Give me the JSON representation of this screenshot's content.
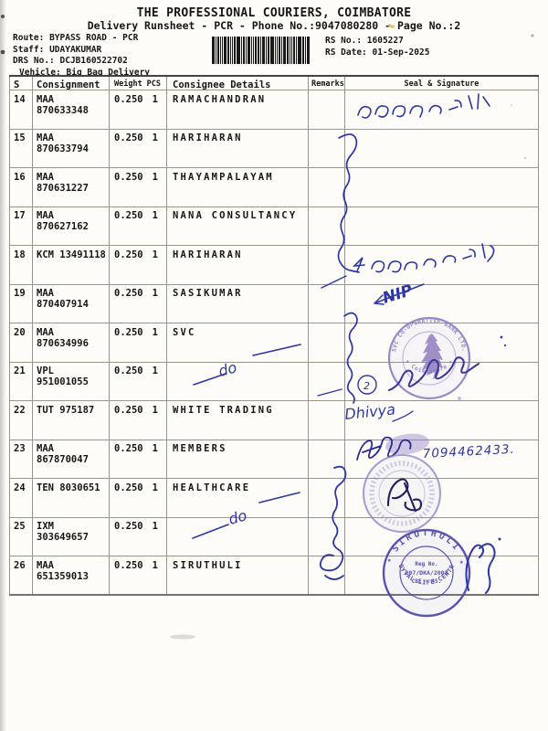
{
  "doc": {
    "title": "THE PROFESSIONAL COURIERS, COIMBATORE",
    "subtitle": "Delivery Runsheet - PCR - Phone No.:9047080280 - Page No.:2",
    "info": {
      "route_label": "Route:",
      "route_value": "BYPASS ROAD - PCR",
      "staff_label": "Staff:",
      "staff_value": "UDAYAKUMAR",
      "drs_label": "DRS No.:",
      "drs_value": "DCJB160522702",
      "vehicle_label": "Vehicle:",
      "vehicle_value": "Big Bag Delivery",
      "rs_no_label": "RS No.:",
      "rs_no_value": "1605227",
      "rs_date_label": "RS Date:",
      "rs_date_value": "01-Sep-2025"
    }
  },
  "table": {
    "headers": {
      "s_no": "S No",
      "consignment": "Consignment No",
      "weight": "Weight",
      "pcs": "PCS",
      "consignee": "Consignee Details",
      "remarks": "Remarks",
      "seal": "Seal & Signature"
    },
    "rows": [
      {
        "s_no": "14",
        "consignment": "MAA 870633348",
        "weight": "0.250",
        "pcs": "1",
        "consignee": "RAMACHANDRAN",
        "remarks": ""
      },
      {
        "s_no": "15",
        "consignment": "MAA 870633794",
        "weight": "0.250",
        "pcs": "1",
        "consignee": "HARIHARAN",
        "remarks": ""
      },
      {
        "s_no": "16",
        "consignment": "MAA 870631227",
        "weight": "0.250",
        "pcs": "1",
        "consignee": "THAYAMPALAYAM",
        "remarks": ""
      },
      {
        "s_no": "17",
        "consignment": "MAA 870627162",
        "weight": "0.250",
        "pcs": "1",
        "consignee": "NANA CONSULTANCY",
        "remarks": ""
      },
      {
        "s_no": "18",
        "consignment": "KCM 13491118",
        "weight": "0.250",
        "pcs": "1",
        "consignee": "HARIHARAN",
        "remarks": ""
      },
      {
        "s_no": "19",
        "consignment": "MAA 870407914",
        "weight": "0.250",
        "pcs": "1",
        "consignee": "SASIKUMAR",
        "remarks": ""
      },
      {
        "s_no": "20",
        "consignment": "MAA 870634996",
        "weight": "0.250",
        "pcs": "1",
        "consignee": "SVC",
        "remarks": ""
      },
      {
        "s_no": "21",
        "consignment": "VPL 951001055",
        "weight": "0.250",
        "pcs": "1",
        "consignee": "",
        "remarks": ""
      },
      {
        "s_no": "22",
        "consignment": "TUT 975187",
        "weight": "0.250",
        "pcs": "1",
        "consignee": "WHITE TRADING",
        "remarks": ""
      },
      {
        "s_no": "23",
        "consignment": "MAA 867870047",
        "weight": "0.250",
        "pcs": "1",
        "consignee": "MEMBERS",
        "remarks": ""
      },
      {
        "s_no": "24",
        "consignment": "TEN 8030651",
        "weight": "0.250",
        "pcs": "1",
        "consignee": "HEALTHCARE",
        "remarks": ""
      },
      {
        "s_no": "25",
        "consignment": "IXM 303649657",
        "weight": "0.250",
        "pcs": "1",
        "consignee": "",
        "remarks": ""
      },
      {
        "s_no": "26",
        "consignment": "MAA 651359013",
        "weight": "0.250",
        "pcs": "1",
        "consignee": "SIRUTHULI",
        "remarks": ""
      }
    ]
  },
  "handwriting": {
    "nip": "NIP",
    "dhivya": "Dhivya",
    "phone": "7094462433.",
    "ditto": "do",
    "circled_number": "2"
  },
  "stamps": {
    "svc_bank": {
      "arc_top": "SVC CO-OPERATIVE BANK LTD.",
      "arc_bottom": "• Coimbatore •"
    },
    "siruthuli": {
      "arc_top": "SIRUTHULI",
      "arc_bottom": "NOYYAL LIFE CENTRE",
      "line1": "Reg No.",
      "line2": "207/DKA/2003",
      "line3": "CBE - 45.",
      "star": "★"
    }
  },
  "colors": {
    "ink_blue": "#2d36a6",
    "stamp_purple": "#8d7dc4",
    "stamp_blue": "#4c45ad"
  }
}
